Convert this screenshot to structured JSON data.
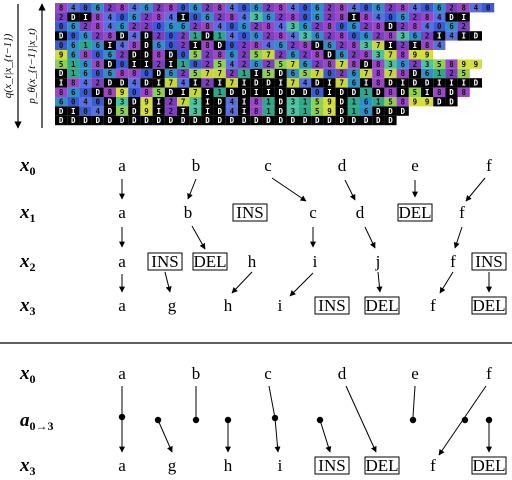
{
  "grid": {
    "rows": [
      "840628462806284062840628406284062840",
      "2DI8406284I0628436280628I8406284DI",
      "062846220662840628436280628D284062",
      "D0628D4D2021D140628436280628362I4ID",
      "0616I48D602I8D0284628D62837I2I84",
      "968062DD8D052862572628D62837899",
      "5168D0II2I102542625762878D836235899",
      "D1606880D6257721I5D6570267878D6125",
      "I842DD4DI74I2I7IDDI74DI76I8DIDDIIID",
      "860D89085DI7I1DDIIDDD0IDD1D8D5I8D8",
      "6040D3D9I273ID4I81D3159D1615899DD",
      "DI04D5D9I2I3ID4I81D3159D16DDD",
      "DDDDDDDDDDDDDDDDDDDDDDDDDDDD"
    ]
  },
  "side_labels": {
    "forward": "q(x_t|x_{t−1})",
    "reverse": "p_θ(x_{t−1}|x_t)"
  },
  "top": {
    "row_labels": [
      {
        "base": "x",
        "sub": "0"
      },
      {
        "base": "x",
        "sub": "1"
      },
      {
        "base": "x",
        "sub": "2"
      },
      {
        "base": "x",
        "sub": "3"
      }
    ],
    "rows": [
      [
        "a",
        "b",
        "c",
        "d",
        "e",
        "f"
      ],
      [
        "a",
        "b",
        "INS",
        "c",
        "d",
        "DEL",
        "f"
      ],
      [
        "a",
        "INS",
        "DEL",
        "h",
        "i",
        "j",
        "f",
        "INS"
      ],
      [
        "a",
        "g",
        "h",
        "i",
        "INS",
        "DEL",
        "f",
        "DEL"
      ]
    ]
  },
  "bottom": {
    "row_labels": [
      {
        "base": "x",
        "sub": "0"
      },
      {
        "base": "a",
        "sub": "0→3"
      },
      {
        "base": "x",
        "sub": "3"
      }
    ],
    "rows": [
      [
        "a",
        "b",
        "c",
        "d",
        "e",
        "f"
      ],
      [
        "a",
        "g",
        "h",
        "i",
        "INS",
        "DEL",
        "f",
        "DEL"
      ]
    ]
  }
}
